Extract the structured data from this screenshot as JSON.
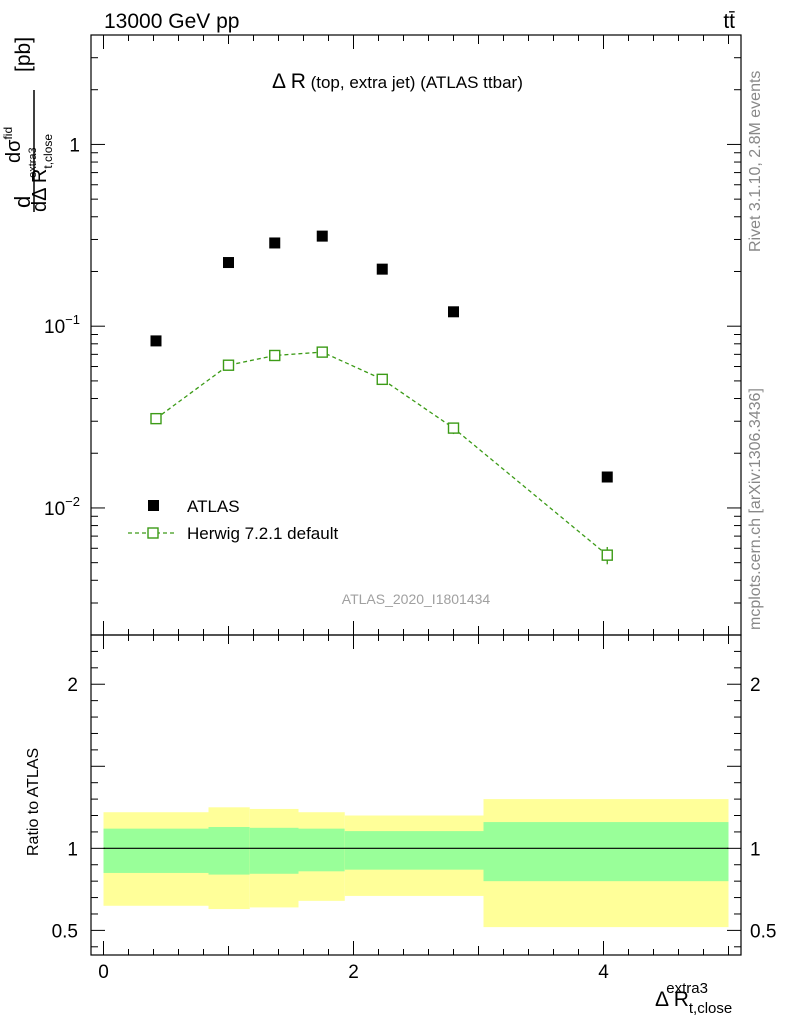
{
  "header": {
    "energy_label": "13000 GeV pp",
    "process_label": "tt̄"
  },
  "side": {
    "rivet_label": "Rivet 3.1.10,  2.8M events",
    "mcplots_label": "mcplots.cern.ch [arXiv:1306.3436]"
  },
  "chart_data": [
    {
      "type": "scatter",
      "title_main": "Δ R",
      "title_sub": " (top, extra jet) (ATLAS ttbar)",
      "analysis_id": "ATLAS_2020_I1801434",
      "ylabel": {
        "d": "d",
        "numer": "dσ",
        "numer_sup": "fid",
        "denom": "dΔ R",
        "denom_sub": "t,close",
        "denom_sup": "extra3",
        "unit": " [pb]"
      },
      "y_scale": "log",
      "ylim": [
        0.002,
        4
      ],
      "xlim": [
        -0.1,
        5.1
      ],
      "y_ticks": [
        {
          "value": 0.01,
          "base": "10",
          "exp": "−2"
        },
        {
          "value": 0.1,
          "base": "10",
          "exp": "−1"
        },
        {
          "value": 1,
          "base": "1",
          "exp": ""
        }
      ],
      "legend_position": "lower-left",
      "series": [
        {
          "name": "ATLAS",
          "style": "marker",
          "color": "#000000",
          "x": [
            0.42,
            1.0,
            1.37,
            1.75,
            2.23,
            2.8,
            4.03
          ],
          "y": [
            0.083,
            0.224,
            0.287,
            0.313,
            0.206,
            0.12,
            0.0148
          ]
        },
        {
          "name": "Herwig 7.2.1 default",
          "style": "dashed-line-open-square",
          "color": "#3c9b17",
          "x": [
            0.42,
            1.0,
            1.37,
            1.75,
            2.23,
            2.8,
            4.03
          ],
          "y": [
            0.031,
            0.061,
            0.069,
            0.072,
            0.051,
            0.0275,
            0.0055
          ],
          "y_err": [
            0.0008,
            0.0015,
            0.0015,
            0.0015,
            0.0013,
            0.002,
            0.0006
          ]
        }
      ]
    },
    {
      "type": "area",
      "ylabel": "Ratio to ATLAS",
      "xlabel": {
        "main": "Δ R",
        "sub": "t,close",
        "sup": "extra3"
      },
      "ylim": [
        0.35,
        2.3
      ],
      "xlim": [
        -0.1,
        5.1
      ],
      "x_ticks": [
        0,
        2,
        4
      ],
      "y_ticks": [
        0.5,
        1,
        2
      ],
      "reference_line": 1,
      "bands": [
        {
          "x0": 0.0,
          "x1": 0.84,
          "stat_lo": 0.85,
          "stat_hi": 1.12,
          "tot_lo": 0.65,
          "tot_hi": 1.22
        },
        {
          "x0": 0.84,
          "x1": 1.17,
          "stat_lo": 0.84,
          "stat_hi": 1.13,
          "tot_lo": 0.63,
          "tot_hi": 1.25
        },
        {
          "x0": 1.17,
          "x1": 1.56,
          "stat_lo": 0.845,
          "stat_hi": 1.125,
          "tot_lo": 0.64,
          "tot_hi": 1.24
        },
        {
          "x0": 1.56,
          "x1": 1.93,
          "stat_lo": 0.86,
          "stat_hi": 1.12,
          "tot_lo": 0.68,
          "tot_hi": 1.22
        },
        {
          "x0": 1.93,
          "x1": 3.04,
          "stat_lo": 0.87,
          "stat_hi": 1.105,
          "tot_lo": 0.71,
          "tot_hi": 1.2
        },
        {
          "x0": 3.04,
          "x1": 5.0,
          "stat_lo": 0.8,
          "stat_hi": 1.16,
          "tot_lo": 0.52,
          "tot_hi": 1.3
        }
      ]
    }
  ],
  "colors": {
    "stat_band": "#99ff99",
    "total_band": "#ffff99",
    "mc": "#3c9b17",
    "data": "#000000",
    "side_text": "#888888",
    "watermark": "#a0a0a0"
  }
}
